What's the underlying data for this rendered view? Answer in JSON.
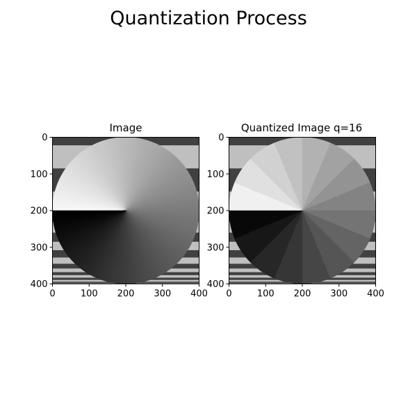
{
  "figure": {
    "suptitle": "Quantization Process"
  },
  "chart_data": [
    {
      "type": "heatmap",
      "title": "Image",
      "xlabel": "",
      "ylabel": "",
      "xlim": [
        0,
        400
      ],
      "ylim": [
        400,
        0
      ],
      "x_ticks": [
        0,
        100,
        200,
        300,
        400
      ],
      "y_ticks": [
        0,
        100,
        200,
        300,
        400
      ],
      "colormap": "gray",
      "content": {
        "background_bands": [
          {
            "y0": 0,
            "y1": 22,
            "gray": 0.25
          },
          {
            "y0": 22,
            "y1": 85,
            "gray": 0.75
          },
          {
            "y0": 85,
            "y1": 148,
            "gray": 0.25
          },
          {
            "y0": 148,
            "y1": 200,
            "gray": 0.75
          },
          {
            "y0": 200,
            "y1": 230,
            "gray": 0.25
          },
          {
            "y0": 230,
            "y1": 260,
            "gray": 0.75
          },
          {
            "y0": 260,
            "y1": 285,
            "gray": 0.25
          },
          {
            "y0": 285,
            "y1": 308,
            "gray": 0.75
          },
          {
            "y0": 308,
            "y1": 328,
            "gray": 0.25
          },
          {
            "y0": 328,
            "y1": 345,
            "gray": 0.75
          },
          {
            "y0": 345,
            "y1": 358,
            "gray": 0.25
          },
          {
            "y0": 358,
            "y1": 368,
            "gray": 0.75
          },
          {
            "y0": 368,
            "y1": 376,
            "gray": 0.25
          },
          {
            "y0": 376,
            "y1": 383,
            "gray": 0.75
          },
          {
            "y0": 383,
            "y1": 389,
            "gray": 0.25
          },
          {
            "y0": 389,
            "y1": 394,
            "gray": 0.75
          },
          {
            "y0": 394,
            "y1": 398,
            "gray": 0.25
          },
          {
            "y0": 398,
            "y1": 400,
            "gray": 0.75
          }
        ],
        "disc": {
          "cx": 200,
          "cy": 200,
          "r": 200,
          "gradient": "angular",
          "brightest_at": "left, just above center",
          "darkest_at": "left, just below center",
          "levels": 256
        }
      }
    },
    {
      "type": "heatmap",
      "title": "Quantized Image q=16",
      "xlabel": "",
      "ylabel": "",
      "xlim": [
        0,
        400
      ],
      "ylim": [
        400,
        0
      ],
      "x_ticks": [
        0,
        100,
        200,
        300,
        400
      ],
      "y_ticks": [
        0,
        100,
        200,
        300,
        400
      ],
      "colormap": "gray",
      "content": {
        "background_bands": "same as Image",
        "disc": {
          "cx": 200,
          "cy": 200,
          "r": 200,
          "gradient": "angular",
          "levels": 16
        }
      }
    }
  ]
}
